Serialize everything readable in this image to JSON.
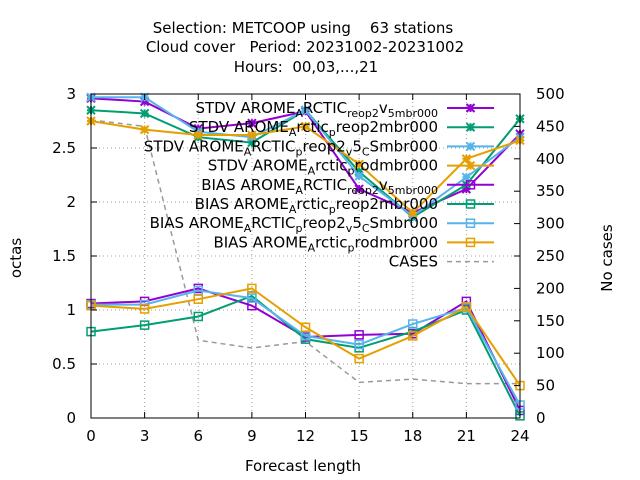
{
  "chart_data": {
    "type": "line",
    "title_lines": [
      "Selection: METCOOP using    63 stations",
      "Cloud cover   Period: 20231002-20231002",
      "Hours:  00,03,...,21"
    ],
    "xlabel": "Forecast length",
    "ylabel": "octas",
    "y2label": "No cases",
    "x": [
      0,
      3,
      6,
      9,
      12,
      15,
      18,
      21,
      24
    ],
    "xlim": [
      0,
      24
    ],
    "ylim": [
      0,
      3
    ],
    "y2lim": [
      0,
      500
    ],
    "x_ticks": [
      "0",
      "3",
      "6",
      "9",
      "12",
      "15",
      "18",
      "21",
      "24"
    ],
    "y_ticks": [
      "0",
      "0.5",
      "1",
      "1.5",
      "2",
      "2.5",
      "3"
    ],
    "y2_ticks": [
      "0",
      "50",
      "100",
      "150",
      "200",
      "250",
      "300",
      "350",
      "400",
      "450",
      "500"
    ],
    "grid": "dotted",
    "legend_position": "top-right",
    "series": [
      {
        "name": "STDV AROME_ARCTIC_reop2_v_5mbr000",
        "legend_parts": [
          "STDV AROME",
          "A",
          "RCTIC",
          "reop2",
          "v",
          "5mbr000"
        ],
        "color": "#9400d3",
        "marker": "x",
        "axis": "y",
        "values": [
          2.96,
          2.93,
          2.68,
          2.73,
          2.84,
          2.12,
          1.9,
          2.12,
          2.63
        ]
      },
      {
        "name": "STDV AROME_Arctic_preop2mbr000",
        "legend_parts": [
          "STDV AROME",
          "A",
          "rctic",
          "p",
          "reop2mbr000"
        ],
        "color": "#009e73",
        "marker": "x",
        "axis": "y",
        "values": [
          2.85,
          2.82,
          2.6,
          2.55,
          2.85,
          2.28,
          1.86,
          2.16,
          2.77
        ]
      },
      {
        "name": "STDV AROME_ARCTIC_preop2_v_5_CSmbr000",
        "legend_parts": [
          "STDV AROME",
          "A",
          "RCTIC",
          "p",
          "reop2",
          "v",
          "5",
          "C",
          "Smbr000"
        ],
        "color": "#56b4e9",
        "marker": "x",
        "axis": "y",
        "values": [
          2.97,
          2.97,
          2.65,
          2.6,
          2.85,
          2.24,
          1.87,
          2.23,
          2.6
        ]
      },
      {
        "name": "STDV AROME_Arctic_prodmbr000",
        "legend_parts": [
          "STDV AROME",
          "A",
          "rctic",
          "p",
          "rodmbr000"
        ],
        "color": "#e69f00",
        "marker": "x",
        "axis": "y",
        "values": [
          2.75,
          2.67,
          2.62,
          2.62,
          2.7,
          2.35,
          1.9,
          2.4,
          2.57
        ]
      },
      {
        "name": "BIAS AROME_ARCTIC_reop2_v_5mbr000",
        "legend_parts": [
          "BIAS AROME",
          "A",
          "RCTIC",
          "reop2",
          "v",
          "5mbr000"
        ],
        "color": "#9400d3",
        "marker": "square",
        "axis": "y",
        "values": [
          1.06,
          1.08,
          1.2,
          1.04,
          0.75,
          0.77,
          0.78,
          1.08,
          0.07
        ]
      },
      {
        "name": "BIAS AROME_Arctic_preop2mbr000",
        "legend_parts": [
          "BIAS AROME",
          "A",
          "rctic",
          "p",
          "reop2mbr000"
        ],
        "color": "#009e73",
        "marker": "square",
        "axis": "y",
        "values": [
          0.8,
          0.86,
          0.94,
          1.13,
          0.73,
          0.65,
          0.8,
          1.0,
          0.02
        ]
      },
      {
        "name": "BIAS AROME_ARCTIC_preop2_v_5_CSmbr000",
        "legend_parts": [
          "BIAS AROME",
          "A",
          "RCTIC",
          "p",
          "reop2",
          "v",
          "5",
          "C",
          "Smbr000"
        ],
        "color": "#56b4e9",
        "marker": "square",
        "axis": "y",
        "values": [
          1.05,
          1.05,
          1.18,
          1.11,
          0.76,
          0.68,
          0.87,
          1.02,
          0.12
        ]
      },
      {
        "name": "BIAS AROME_Arctic_prodmbr000",
        "legend_parts": [
          "BIAS AROME",
          "A",
          "rctic",
          "p",
          "rodmbr000"
        ],
        "color": "#e69f00",
        "marker": "square",
        "axis": "y",
        "values": [
          1.04,
          1.01,
          1.1,
          1.2,
          0.84,
          0.55,
          0.76,
          1.03,
          0.3
        ]
      },
      {
        "name": "CASES",
        "legend_parts": [
          "CASES"
        ],
        "color": "#999999",
        "marker": "none",
        "dashed": true,
        "axis": "y2",
        "values": [
          460,
          450,
          120,
          108,
          118,
          55,
          60,
          53,
          53
        ]
      }
    ]
  }
}
